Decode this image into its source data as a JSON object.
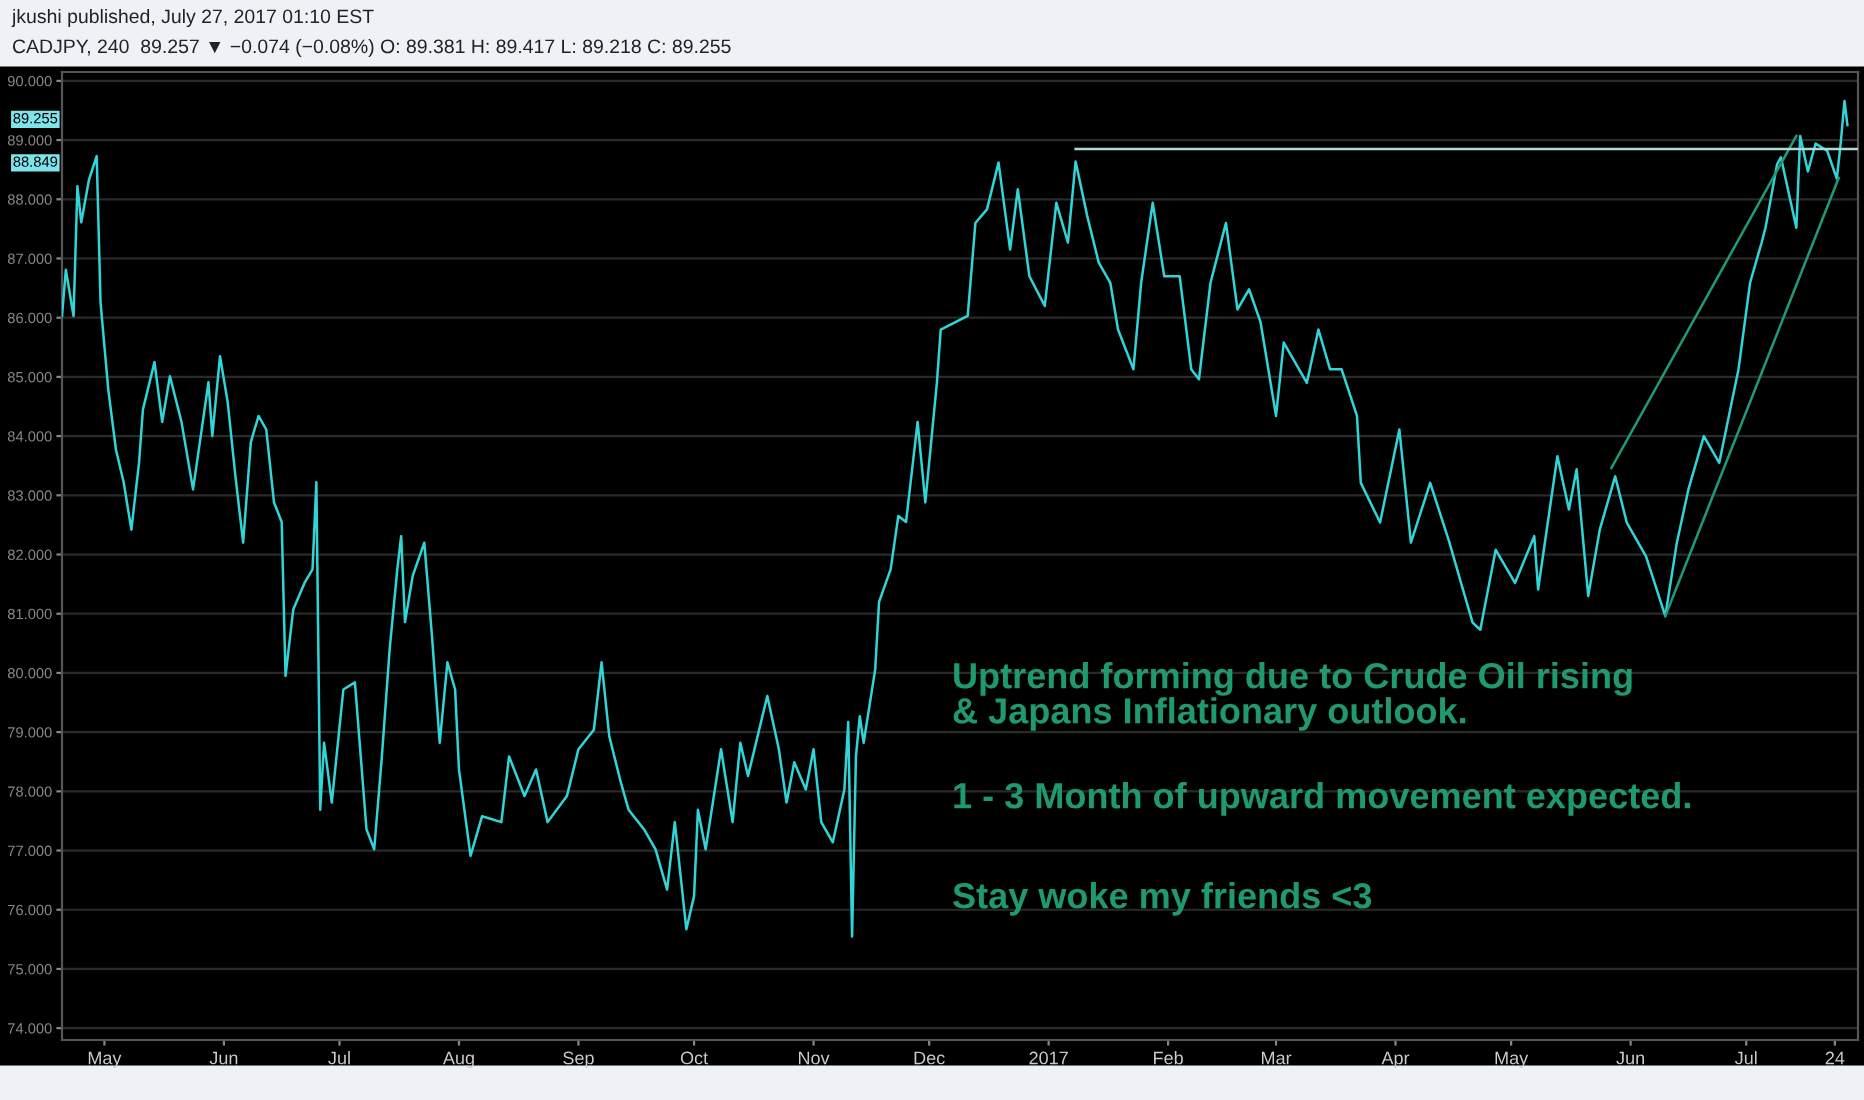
{
  "chart_data": {
    "type": "line",
    "title": "CADJPY, 240  89.257 ▼ −0.074 (−0.08%) O: 89.381 H: 89.417 L: 89.218 C: 89.255",
    "annotations": [
      "jkushi published, July 27, 2017 01:10 EST",
      "Uptrend forming due to Crude Oil rising\n& Japans Inflationary outlook.",
      "1 - 3 Month of upward movement expected.",
      "Stay woke my friends <3",
      "89.255",
      "88.849"
    ],
    "series": [
      {
        "color": "#30d5d8",
        "x": [
          "2016-04-20",
          "2016-04-21",
          "2016-04-23",
          "2016-04-24",
          "2016-04-25",
          "2016-04-27",
          "2016-04-29",
          "2016-04-30",
          "2016-05-02",
          "2016-05-04",
          "2016-05-06",
          "2016-05-08",
          "2016-05-10",
          "2016-05-11",
          "2016-05-14",
          "2016-05-16",
          "2016-05-18",
          "2016-05-21",
          "2016-05-24",
          "2016-05-26",
          "2016-05-28",
          "2016-05-29",
          "2016-05-31",
          "2016-06-02",
          "2016-06-04",
          "2016-06-06",
          "2016-06-08",
          "2016-06-10",
          "2016-06-12",
          "2016-06-14",
          "2016-06-16",
          "2016-06-17",
          "2016-06-19",
          "2016-06-22",
          "2016-06-24",
          "2016-06-25",
          "2016-06-26",
          "2016-06-27",
          "2016-06-29",
          "2016-07-02",
          "2016-07-05",
          "2016-07-08",
          "2016-07-10",
          "2016-07-12",
          "2016-07-14",
          "2016-07-16",
          "2016-07-17",
          "2016-07-18",
          "2016-07-20",
          "2016-07-23",
          "2016-07-25",
          "2016-07-27",
          "2016-07-29",
          "2016-07-31",
          "2016-08-01",
          "2016-08-04",
          "2016-08-07",
          "2016-08-12",
          "2016-08-14",
          "2016-08-18",
          "2016-08-21",
          "2016-08-24",
          "2016-08-29",
          "2016-09-01",
          "2016-09-05",
          "2016-09-07",
          "2016-09-09",
          "2016-09-12",
          "2016-09-14",
          "2016-09-18",
          "2016-09-21",
          "2016-09-24",
          "2016-09-26",
          "2016-09-29",
          "2016-10-01",
          "2016-10-02",
          "2016-10-04",
          "2016-10-08",
          "2016-10-11",
          "2016-10-13",
          "2016-10-15",
          "2016-10-20",
          "2016-10-23",
          "2016-10-25",
          "2016-10-27",
          "2016-10-30",
          "2016-11-01",
          "2016-11-03",
          "2016-11-06",
          "2016-11-09",
          "2016-11-10",
          "2016-11-11",
          "2016-11-12",
          "2016-11-13",
          "2016-11-14",
          "2016-11-17",
          "2016-11-18",
          "2016-11-21",
          "2016-11-23",
          "2016-11-25",
          "2016-11-28",
          "2016-11-30",
          "2016-12-03",
          "2016-12-04",
          "2016-12-11",
          "2016-12-13",
          "2016-12-16",
          "2016-12-19",
          "2016-12-22",
          "2016-12-24",
          "2016-12-27",
          "2016-12-31",
          "2017-01-03",
          "2017-01-06",
          "2017-01-08",
          "2017-01-11",
          "2017-01-14",
          "2017-01-17",
          "2017-01-19",
          "2017-01-23",
          "2017-01-25",
          "2017-01-28",
          "2017-01-31",
          "2017-02-04",
          "2017-02-07",
          "2017-02-09",
          "2017-02-12",
          "2017-02-16",
          "2017-02-19",
          "2017-02-22",
          "2017-02-25",
          "2017-03-01",
          "2017-03-03",
          "2017-03-09",
          "2017-03-12",
          "2017-03-15",
          "2017-03-18",
          "2017-03-22",
          "2017-03-23",
          "2017-03-28",
          "2017-04-02",
          "2017-04-05",
          "2017-04-10",
          "2017-04-15",
          "2017-04-18",
          "2017-04-21",
          "2017-04-23",
          "2017-04-27",
          "2017-05-02",
          "2017-05-07",
          "2017-05-08",
          "2017-05-13",
          "2017-05-16",
          "2017-05-18",
          "2017-05-21",
          "2017-05-24",
          "2017-05-28",
          "2017-05-31",
          "2017-06-05",
          "2017-06-10",
          "2017-06-13",
          "2017-06-16",
          "2017-06-20",
          "2017-06-24",
          "2017-06-29",
          "2017-07-02",
          "2017-07-05",
          "2017-07-06",
          "2017-07-09",
          "2017-07-10",
          "2017-07-14",
          "2017-07-15",
          "2017-07-17",
          "2017-07-19",
          "2017-07-22",
          "2017-07-24T12:00",
          "2017-07-25T12:00",
          "2017-07-26T12:00",
          "2017-07-27T06:00"
        ],
        "values": [
          86.03,
          86.81,
          86.03,
          88.22,
          87.61,
          88.33,
          88.73,
          86.26,
          84.79,
          83.77,
          83.22,
          82.42,
          83.56,
          84.45,
          85.25,
          84.24,
          85.01,
          84.24,
          83.1,
          84.0,
          84.91,
          84.0,
          85.35,
          84.57,
          83.32,
          82.2,
          83.9,
          84.34,
          84.11,
          82.88,
          82.55,
          79.95,
          81.07,
          81.53,
          81.75,
          83.22,
          77.69,
          78.82,
          77.81,
          79.72,
          79.84,
          77.36,
          77.02,
          78.59,
          80.39,
          81.75,
          82.31,
          80.86,
          81.64,
          82.2,
          80.62,
          78.82,
          80.18,
          79.72,
          78.37,
          76.91,
          77.58,
          77.48,
          78.59,
          77.92,
          78.37,
          77.48,
          77.92,
          78.71,
          79.04,
          80.18,
          78.93,
          78.15,
          77.69,
          77.36,
          77.02,
          76.34,
          77.48,
          75.67,
          76.23,
          77.69,
          77.02,
          78.71,
          77.48,
          78.82,
          78.26,
          79.61,
          78.71,
          77.81,
          78.49,
          78.03,
          78.71,
          77.48,
          77.14,
          78.03,
          79.17,
          75.55,
          78.59,
          79.27,
          78.82,
          80.06,
          81.2,
          81.75,
          82.65,
          82.55,
          84.24,
          82.88,
          84.9,
          85.8,
          86.03,
          87.6,
          87.83,
          88.62,
          87.15,
          88.17,
          86.7,
          86.2,
          87.94,
          87.27,
          88.64,
          87.72,
          86.93,
          86.59,
          85.8,
          85.13,
          86.59,
          87.94,
          86.7,
          86.7,
          85.13,
          84.96,
          86.59,
          87.6,
          86.14,
          86.48,
          85.92,
          84.34,
          85.58,
          84.9,
          85.8,
          85.13,
          85.13,
          84.34,
          83.21,
          82.54,
          84.11,
          82.2,
          83.21,
          82.2,
          81.52,
          80.85,
          80.73,
          82.08,
          81.52,
          82.31,
          81.41,
          83.66,
          82.76,
          83.44,
          81.3,
          82.42,
          83.32,
          82.54,
          81.97,
          80.96,
          82.2,
          83.1,
          84.0,
          83.55,
          85.13,
          86.59,
          87.27,
          87.52,
          88.59,
          88.71,
          87.52,
          89.07,
          88.47,
          88.94,
          88.82,
          88.35,
          88.94,
          89.66,
          89.255
        ]
      },
      {
        "color": "#1f9a7a",
        "x": [
          "2017-05-27",
          "2017-07-14"
        ],
        "values": [
          83.46,
          89.07
        ]
      },
      {
        "color": "#1f9a7a",
        "x": [
          "2017-06-10",
          "2017-07-25"
        ],
        "values": [
          80.96,
          88.36
        ]
      },
      {
        "color": "#a8dcd6",
        "x": [
          "2017-01-08",
          "2017-07-30"
        ],
        "values": [
          88.849,
          88.849
        ]
      }
    ],
    "xlim": [
      "2016-04-20",
      "2017-07-30"
    ],
    "xticks": [
      {
        "value": "2016-05-01",
        "label": "May"
      },
      {
        "value": "2016-06-01",
        "label": "Jun"
      },
      {
        "value": "2016-07-01",
        "label": "Jul"
      },
      {
        "value": "2016-08-01",
        "label": "Aug"
      },
      {
        "value": "2016-09-01",
        "label": "Sep"
      },
      {
        "value": "2016-10-01",
        "label": "Oct"
      },
      {
        "value": "2016-11-01",
        "label": "Nov"
      },
      {
        "value": "2016-12-01",
        "label": "Dec"
      },
      {
        "value": "2017-01-01",
        "label": "2017"
      },
      {
        "value": "2017-02-01",
        "label": "Feb"
      },
      {
        "value": "2017-03-01",
        "label": "Mar"
      },
      {
        "value": "2017-04-01",
        "label": "Apr"
      },
      {
        "value": "2017-05-01",
        "label": "May"
      },
      {
        "value": "2017-06-01",
        "label": "Jun"
      },
      {
        "value": "2017-07-01",
        "label": "Jul"
      },
      {
        "value": "2017-07-24",
        "label": "24"
      }
    ],
    "ylim": [
      73.8,
      90.15
    ],
    "yticks": [
      {
        "value": 74,
        "label": "74.000"
      },
      {
        "value": 75,
        "label": "75.000"
      },
      {
        "value": 76,
        "label": "76.000"
      },
      {
        "value": 77,
        "label": "77.000"
      },
      {
        "value": 78,
        "label": "78.000"
      },
      {
        "value": 79,
        "label": "79.000"
      },
      {
        "value": 80,
        "label": "80.000"
      },
      {
        "value": 81,
        "label": "81.000"
      },
      {
        "value": 82,
        "label": "82.000"
      },
      {
        "value": 83,
        "label": "83.000"
      },
      {
        "value": 84,
        "label": "84.000"
      },
      {
        "value": 85,
        "label": "85.000"
      },
      {
        "value": 86,
        "label": "86.000"
      },
      {
        "value": 87,
        "label": "87.000"
      },
      {
        "value": 88,
        "label": "88.000"
      },
      {
        "value": 89,
        "label": "89.000"
      },
      {
        "value": 90,
        "label": "90.000"
      }
    ],
    "grid": "y"
  }
}
